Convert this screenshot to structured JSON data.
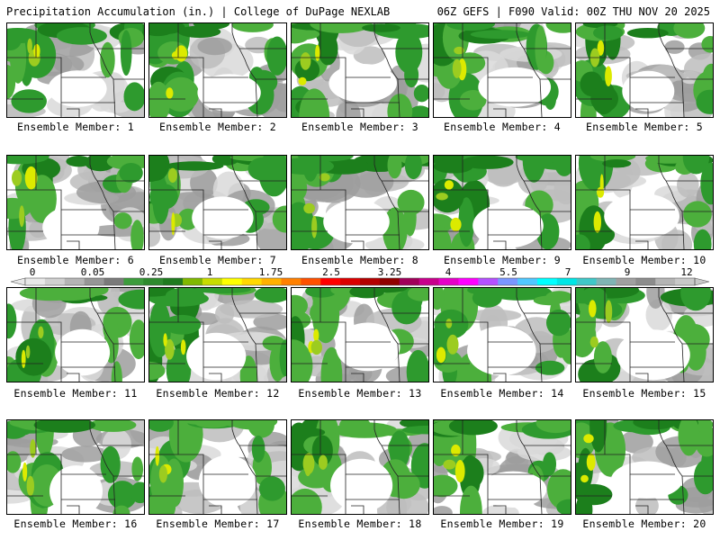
{
  "header": {
    "left": "Precipitation Accumulation (in.) | College of DuPage NEXLAB",
    "right": "06Z GEFS | F090 Valid: 00Z THU NOV 20 2025"
  },
  "members": [
    {
      "label": "Ensemble Member: 1"
    },
    {
      "label": "Ensemble Member: 2"
    },
    {
      "label": "Ensemble Member: 3"
    },
    {
      "label": "Ensemble Member: 4"
    },
    {
      "label": "Ensemble Member: 5"
    },
    {
      "label": "Ensemble Member: 6"
    },
    {
      "label": "Ensemble Member: 7"
    },
    {
      "label": "Ensemble Member: 8"
    },
    {
      "label": "Ensemble Member: 9"
    },
    {
      "label": "Ensemble Member: 10"
    },
    {
      "label": "Ensemble Member: 11"
    },
    {
      "label": "Ensemble Member: 12"
    },
    {
      "label": "Ensemble Member: 13"
    },
    {
      "label": "Ensemble Member: 14"
    },
    {
      "label": "Ensemble Member: 15"
    },
    {
      "label": "Ensemble Member: 16"
    },
    {
      "label": "Ensemble Member: 17"
    },
    {
      "label": "Ensemble Member: 18"
    },
    {
      "label": "Ensemble Member: 19"
    },
    {
      "label": "Ensemble Member: 20"
    }
  ],
  "colorbar": {
    "ticks": [
      "0",
      "0.05",
      "0.25",
      "1",
      "1.75",
      "2.5",
      "3.25",
      "4",
      "5.5",
      "7",
      "9",
      "12"
    ],
    "colors": [
      "#e8e8e8",
      "#d0d0d0",
      "#b4b4b4",
      "#969696",
      "#7a7a7a",
      "#3c9c3c",
      "#2e8a2e",
      "#1f7a1f",
      "#80b800",
      "#c8dc00",
      "#ffff00",
      "#ffd800",
      "#ffb000",
      "#ff8000",
      "#ff5000",
      "#ff0000",
      "#dc0000",
      "#b40000",
      "#900000",
      "#a0005a",
      "#c8008c",
      "#e600c8",
      "#ff00ff",
      "#b450ff",
      "#7a96ff",
      "#50c8ff",
      "#00ffff",
      "#00e6e6",
      "#40c8c8",
      "#80b4b4",
      "#a0a0a0",
      "#8c8c8c",
      "#b4b4b4",
      "#c8c8c8"
    ]
  },
  "chart_data": {
    "type": "heatmap",
    "title": "Precipitation Accumulation (in.)",
    "source": "College of DuPage NEXLAB",
    "model": "06Z GEFS",
    "forecast_hour": "F090",
    "valid": "00Z THU NOV 20 2025",
    "panels": 20,
    "levels_in": [
      0,
      0.05,
      0.25,
      1,
      1.75,
      2.5,
      3.25,
      4,
      5.5,
      7,
      9,
      12
    ],
    "legend_placement": "middle"
  }
}
